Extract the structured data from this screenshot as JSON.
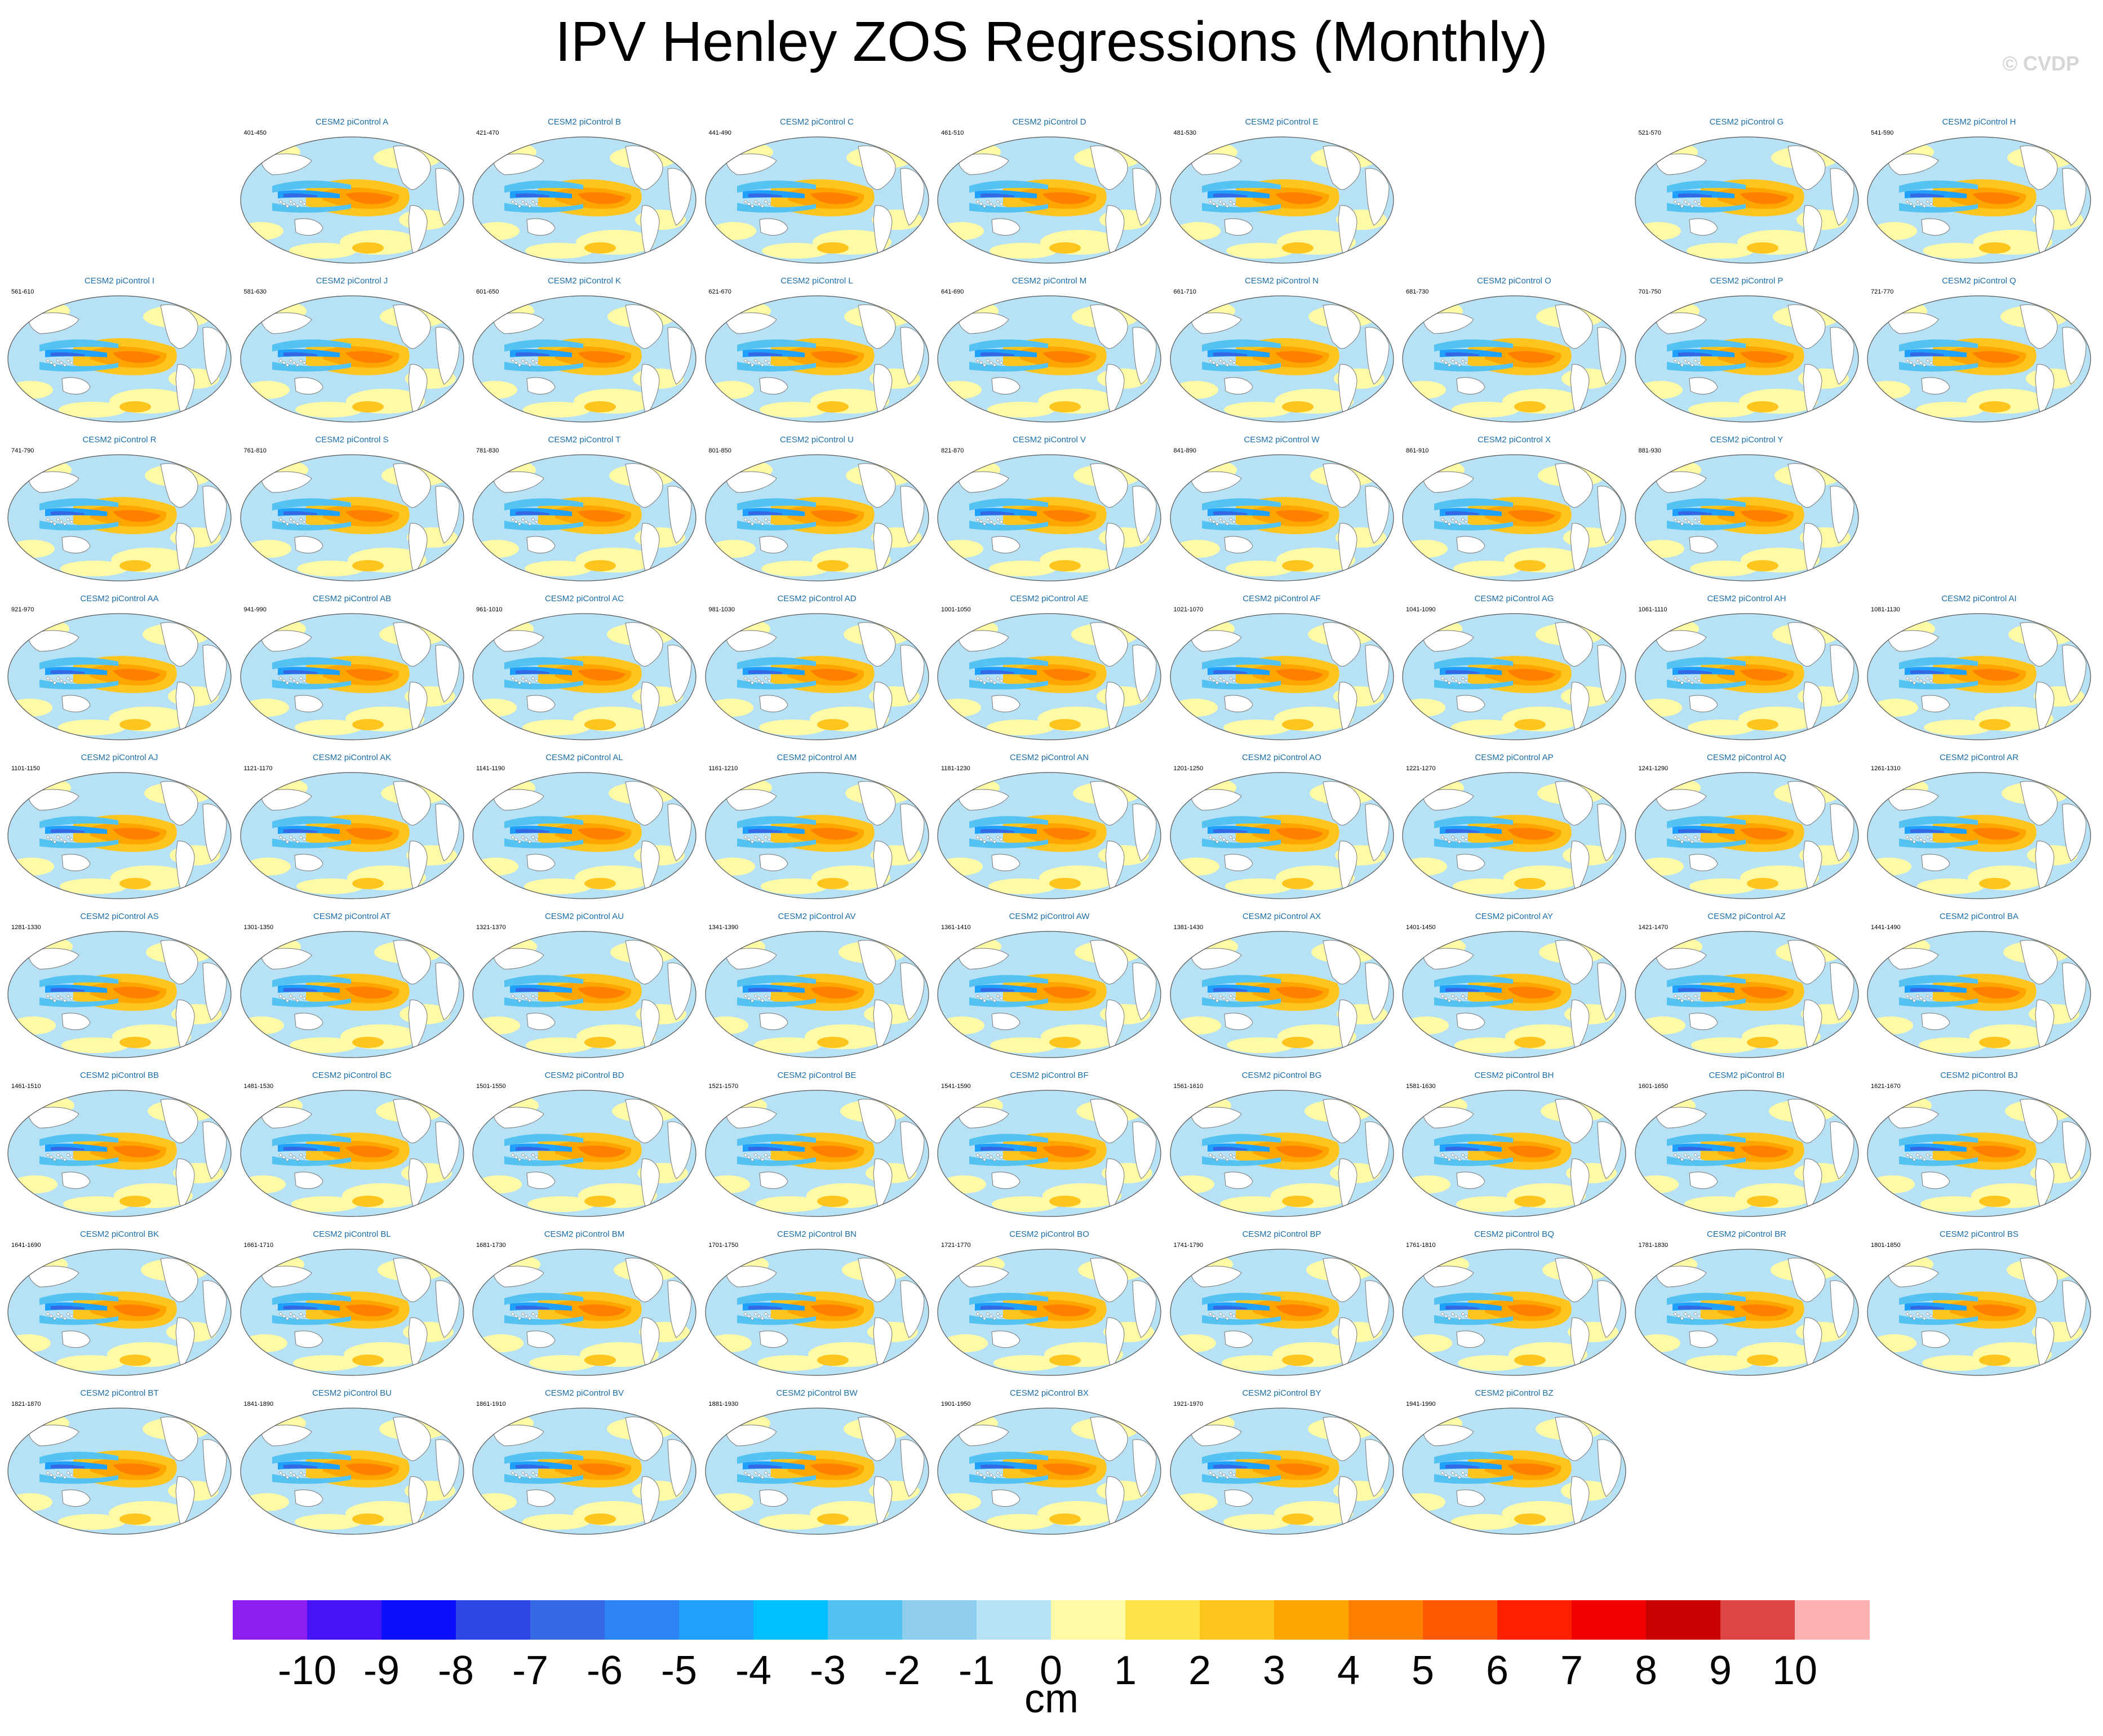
{
  "title": "IPV Henley ZOS Regressions (Monthly)",
  "watermark": "© CVDP",
  "units": "cm",
  "colorbar": {
    "colors": [
      "#8a1ff0",
      "#4513f5",
      "#0a10fa",
      "#2e46e6",
      "#3468e4",
      "#2b84f2",
      "#1ea0fb",
      "#00bfff",
      "#54c3f2",
      "#8fcdee",
      "#b7e1f4",
      "#fffaa6",
      "#ffe34a",
      "#fec51e",
      "#fea500",
      "#ff8000",
      "#ff5a00",
      "#ff2000",
      "#f00000",
      "#c80000",
      "#dd4444",
      "#ffb0b0"
    ],
    "tick_labels": [
      "-10",
      "-9",
      "-8",
      "-7",
      "-6",
      "-5",
      "-4",
      "-3",
      "-2",
      "-1",
      "0",
      "1",
      "2",
      "3",
      "4",
      "5",
      "6",
      "7",
      "8",
      "9",
      "10"
    ]
  },
  "panels": [
    {
      "row": 0,
      "col": 1,
      "title": "CESM2 piControl A",
      "years": "401-450"
    },
    {
      "row": 0,
      "col": 2,
      "title": "CESM2 piControl B",
      "years": "421-470"
    },
    {
      "row": 0,
      "col": 3,
      "title": "CESM2 piControl C",
      "years": "441-490"
    },
    {
      "row": 0,
      "col": 4,
      "title": "CESM2 piControl D",
      "years": "461-510"
    },
    {
      "row": 0,
      "col": 5,
      "title": "CESM2 piControl E",
      "years": "481-530"
    },
    {
      "row": 0,
      "col": 7,
      "title": "CESM2 piControl G",
      "years": "521-570"
    },
    {
      "row": 0,
      "col": 8,
      "title": "CESM2 piControl H",
      "years": "541-590"
    },
    {
      "row": 1,
      "col": 0,
      "title": "CESM2 piControl I",
      "years": "561-610"
    },
    {
      "row": 1,
      "col": 1,
      "title": "CESM2 piControl J",
      "years": "581-630"
    },
    {
      "row": 1,
      "col": 2,
      "title": "CESM2 piControl K",
      "years": "601-650"
    },
    {
      "row": 1,
      "col": 3,
      "title": "CESM2 piControl L",
      "years": "621-670"
    },
    {
      "row": 1,
      "col": 4,
      "title": "CESM2 piControl M",
      "years": "641-690"
    },
    {
      "row": 1,
      "col": 5,
      "title": "CESM2 piControl N",
      "years": "661-710"
    },
    {
      "row": 1,
      "col": 6,
      "title": "CESM2 piControl O",
      "years": "681-730"
    },
    {
      "row": 1,
      "col": 7,
      "title": "CESM2 piControl P",
      "years": "701-750"
    },
    {
      "row": 1,
      "col": 8,
      "title": "CESM2 piControl Q",
      "years": "721-770"
    },
    {
      "row": 2,
      "col": 0,
      "title": "CESM2 piControl R",
      "years": "741-790"
    },
    {
      "row": 2,
      "col": 1,
      "title": "CESM2 piControl S",
      "years": "761-810"
    },
    {
      "row": 2,
      "col": 2,
      "title": "CESM2 piControl T",
      "years": "781-830"
    },
    {
      "row": 2,
      "col": 3,
      "title": "CESM2 piControl U",
      "years": "801-850"
    },
    {
      "row": 2,
      "col": 4,
      "title": "CESM2 piControl V",
      "years": "821-870"
    },
    {
      "row": 2,
      "col": 5,
      "title": "CESM2 piControl W",
      "years": "841-890"
    },
    {
      "row": 2,
      "col": 6,
      "title": "CESM2 piControl X",
      "years": "861-910"
    },
    {
      "row": 2,
      "col": 7,
      "title": "CESM2 piControl Y",
      "years": "881-930"
    },
    {
      "row": 3,
      "col": 0,
      "title": "CESM2 piControl AA",
      "years": "921-970"
    },
    {
      "row": 3,
      "col": 1,
      "title": "CESM2 piControl AB",
      "years": "941-990"
    },
    {
      "row": 3,
      "col": 2,
      "title": "CESM2 piControl AC",
      "years": "961-1010"
    },
    {
      "row": 3,
      "col": 3,
      "title": "CESM2 piControl AD",
      "years": "981-1030"
    },
    {
      "row": 3,
      "col": 4,
      "title": "CESM2 piControl AE",
      "years": "1001-1050"
    },
    {
      "row": 3,
      "col": 5,
      "title": "CESM2 piControl AF",
      "years": "1021-1070"
    },
    {
      "row": 3,
      "col": 6,
      "title": "CESM2 piControl AG",
      "years": "1041-1090"
    },
    {
      "row": 3,
      "col": 7,
      "title": "CESM2 piControl AH",
      "years": "1061-1110"
    },
    {
      "row": 3,
      "col": 8,
      "title": "CESM2 piControl AI",
      "years": "1081-1130"
    },
    {
      "row": 4,
      "col": 0,
      "title": "CESM2 piControl AJ",
      "years": "1101-1150"
    },
    {
      "row": 4,
      "col": 1,
      "title": "CESM2 piControl AK",
      "years": "1121-1170"
    },
    {
      "row": 4,
      "col": 2,
      "title": "CESM2 piControl AL",
      "years": "1141-1190"
    },
    {
      "row": 4,
      "col": 3,
      "title": "CESM2 piControl AM",
      "years": "1161-1210"
    },
    {
      "row": 4,
      "col": 4,
      "title": "CESM2 piControl AN",
      "years": "1181-1230"
    },
    {
      "row": 4,
      "col": 5,
      "title": "CESM2 piControl AO",
      "years": "1201-1250"
    },
    {
      "row": 4,
      "col": 6,
      "title": "CESM2 piControl AP",
      "years": "1221-1270"
    },
    {
      "row": 4,
      "col": 7,
      "title": "CESM2 piControl AQ",
      "years": "1241-1290"
    },
    {
      "row": 4,
      "col": 8,
      "title": "CESM2 piControl AR",
      "years": "1261-1310"
    },
    {
      "row": 5,
      "col": 0,
      "title": "CESM2 piControl AS",
      "years": "1281-1330"
    },
    {
      "row": 5,
      "col": 1,
      "title": "CESM2 piControl AT",
      "years": "1301-1350"
    },
    {
      "row": 5,
      "col": 2,
      "title": "CESM2 piControl AU",
      "years": "1321-1370"
    },
    {
      "row": 5,
      "col": 3,
      "title": "CESM2 piControl AV",
      "years": "1341-1390"
    },
    {
      "row": 5,
      "col": 4,
      "title": "CESM2 piControl AW",
      "years": "1361-1410"
    },
    {
      "row": 5,
      "col": 5,
      "title": "CESM2 piControl AX",
      "years": "1381-1430"
    },
    {
      "row": 5,
      "col": 6,
      "title": "CESM2 piControl AY",
      "years": "1401-1450"
    },
    {
      "row": 5,
      "col": 7,
      "title": "CESM2 piControl AZ",
      "years": "1421-1470"
    },
    {
      "row": 5,
      "col": 8,
      "title": "CESM2 piControl BA",
      "years": "1441-1490"
    },
    {
      "row": 6,
      "col": 0,
      "title": "CESM2 piControl BB",
      "years": "1461-1510"
    },
    {
      "row": 6,
      "col": 1,
      "title": "CESM2 piControl BC",
      "years": "1481-1530"
    },
    {
      "row": 6,
      "col": 2,
      "title": "CESM2 piControl BD",
      "years": "1501-1550"
    },
    {
      "row": 6,
      "col": 3,
      "title": "CESM2 piControl BE",
      "years": "1521-1570"
    },
    {
      "row": 6,
      "col": 4,
      "title": "CESM2 piControl BF",
      "years": "1541-1590"
    },
    {
      "row": 6,
      "col": 5,
      "title": "CESM2 piControl BG",
      "years": "1561-1610"
    },
    {
      "row": 6,
      "col": 6,
      "title": "CESM2 piControl BH",
      "years": "1581-1630"
    },
    {
      "row": 6,
      "col": 7,
      "title": "CESM2 piControl BI",
      "years": "1601-1650"
    },
    {
      "row": 6,
      "col": 8,
      "title": "CESM2 piControl BJ",
      "years": "1621-1670"
    },
    {
      "row": 7,
      "col": 0,
      "title": "CESM2 piControl BK",
      "years": "1641-1690"
    },
    {
      "row": 7,
      "col": 1,
      "title": "CESM2 piControl BL",
      "years": "1661-1710"
    },
    {
      "row": 7,
      "col": 2,
      "title": "CESM2 piControl BM",
      "years": "1681-1730"
    },
    {
      "row": 7,
      "col": 3,
      "title": "CESM2 piControl BN",
      "years": "1701-1750"
    },
    {
      "row": 7,
      "col": 4,
      "title": "CESM2 piControl BO",
      "years": "1721-1770"
    },
    {
      "row": 7,
      "col": 5,
      "title": "CESM2 piControl BP",
      "years": "1741-1790"
    },
    {
      "row": 7,
      "col": 6,
      "title": "CESM2 piControl BQ",
      "years": "1761-1810"
    },
    {
      "row": 7,
      "col": 7,
      "title": "CESM2 piControl BR",
      "years": "1781-1830"
    },
    {
      "row": 7,
      "col": 8,
      "title": "CESM2 piControl BS",
      "years": "1801-1850"
    },
    {
      "row": 8,
      "col": 0,
      "title": "CESM2 piControl BT",
      "years": "1821-1870"
    },
    {
      "row": 8,
      "col": 1,
      "title": "CESM2 piControl BU",
      "years": "1841-1890"
    },
    {
      "row": 8,
      "col": 2,
      "title": "CESM2 piControl BV",
      "years": "1861-1910"
    },
    {
      "row": 8,
      "col": 3,
      "title": "CESM2 piControl BW",
      "years": "1881-1930"
    },
    {
      "row": 8,
      "col": 4,
      "title": "CESM2 piControl BX",
      "years": "1901-1950"
    },
    {
      "row": 8,
      "col": 5,
      "title": "CESM2 piControl BY",
      "years": "1921-1970"
    },
    {
      "row": 8,
      "col": 6,
      "title": "CESM2 piControl BZ",
      "years": "1941-1990"
    }
  ]
}
